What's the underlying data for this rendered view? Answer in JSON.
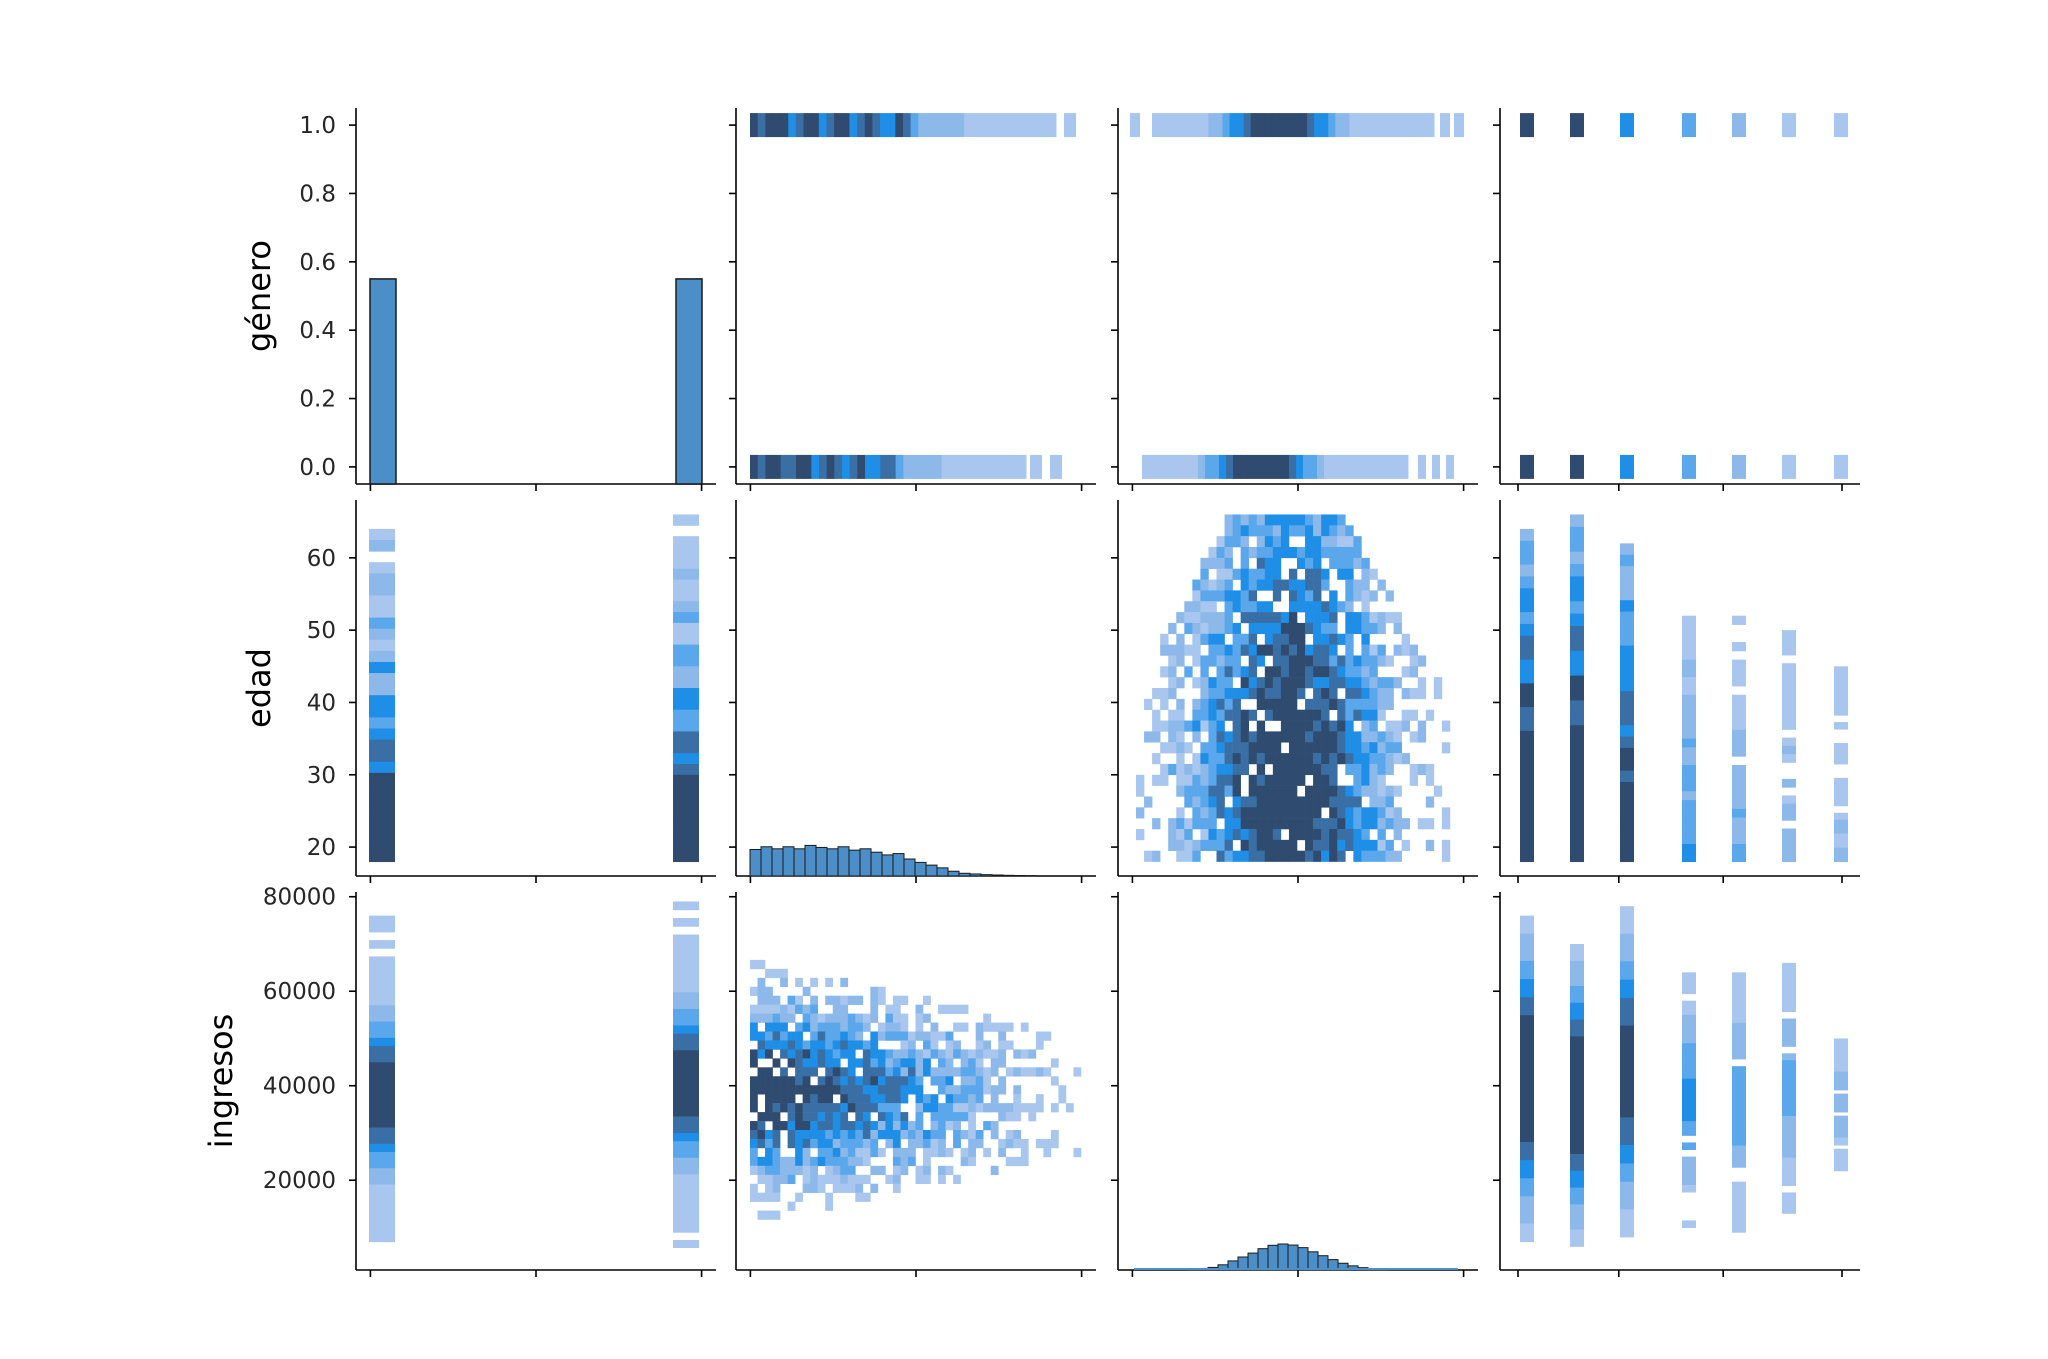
{
  "chart_data": {
    "type": "pairplot-histogram",
    "variables": [
      "género",
      "edad",
      "ingresos"
    ],
    "axis_labels": {
      "genero": "género",
      "edad": "edad",
      "ingresos": "ingresos"
    },
    "ranges": {
      "genero": [
        -0.05,
        1.05
      ],
      "edad": [
        16,
        68
      ],
      "ingresos": [
        1000,
        81000
      ],
      "col4": [
        0,
        6.6
      ]
    },
    "yticks": {
      "genero": [
        "0.0",
        "0.2",
        "0.4",
        "0.6",
        "0.8",
        "1.0"
      ],
      "edad": [
        "20",
        "30",
        "40",
        "50",
        "60"
      ],
      "ingresos": [
        "20000",
        "40000",
        "60000",
        "80000"
      ]
    },
    "colors": {
      "dark": "#2f4b6f",
      "mid": "#1f8ee6",
      "light": "#a9c7ee",
      "bar_fill": "#4c8ec7"
    },
    "genero_hist": {
      "categories": [
        0,
        1
      ],
      "values": [
        0.55,
        0.55
      ]
    },
    "edad_hist_trend": [
      0.78,
      0.86,
      0.8,
      0.86,
      0.8,
      0.9,
      0.84,
      0.8,
      0.86,
      0.76,
      0.8,
      0.7,
      0.62,
      0.66,
      0.5,
      0.4,
      0.32,
      0.24,
      0.14,
      0.08,
      0.06,
      0.04,
      0.03,
      0.02,
      0.015,
      0.01
    ],
    "ingresos_hist_trend": [
      0.02,
      0.05,
      0.1,
      0.2,
      0.35,
      0.5,
      0.65,
      0.82,
      0.95,
      1.0,
      0.96,
      0.86,
      0.7,
      0.55,
      0.4,
      0.26,
      0.16,
      0.09,
      0.05,
      0.02
    ]
  }
}
